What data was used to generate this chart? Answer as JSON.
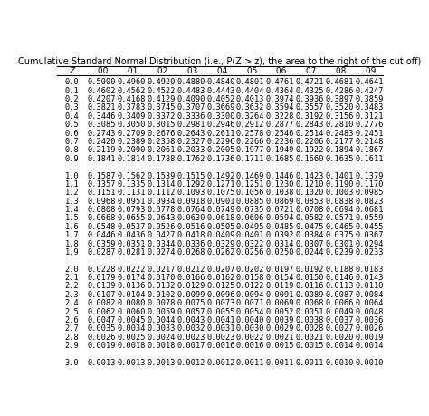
{
  "title": "Cumulative Standard Normal Distribution (i.e., P(Z > z), the area to the right of the cut off)",
  "col_headers": [
    "Z",
    ".00",
    ".01",
    ".02",
    ".03",
    ".04",
    ".05",
    ".06",
    ".07",
    ".08",
    ".09"
  ],
  "rows": [
    [
      "0.0",
      "0.5000",
      "0.4960",
      "0.4920",
      "0.4880",
      "0.4840",
      "0.4801",
      "0.4761",
      "0.4721",
      "0.4681",
      "0.4641"
    ],
    [
      "0.1",
      "0.4602",
      "0.4562",
      "0.4522",
      "0.4483",
      "0.4443",
      "0.4404",
      "0.4364",
      "0.4325",
      "0.4286",
      "0.4247"
    ],
    [
      "0.2",
      "0.4207",
      "0.4168",
      "0.4129",
      "0.4090",
      "0.4052",
      "0.4013",
      "0.3974",
      "0.3936",
      "0.3897",
      "0.3859"
    ],
    [
      "0.3",
      "0.3821",
      "0.3783",
      "0.3745",
      "0.3707",
      "0.3669",
      "0.3632",
      "0.3594",
      "0.3557",
      "0.3520",
      "0.3483"
    ],
    [
      "0.4",
      "0.3446",
      "0.3409",
      "0.3372",
      "0.3336",
      "0.3300",
      "0.3264",
      "0.3228",
      "0.3192",
      "0.3156",
      "0.3121"
    ],
    [
      "0.5",
      "0.3085",
      "0.3050",
      "0.3015",
      "0.2981",
      "0.2946",
      "0.2912",
      "0.2877",
      "0.2843",
      "0.2810",
      "0.2776"
    ],
    [
      "0.6",
      "0.2743",
      "0.2709",
      "0.2676",
      "0.2643",
      "0.2611",
      "0.2578",
      "0.2546",
      "0.2514",
      "0.2483",
      "0.2451"
    ],
    [
      "0.7",
      "0.2420",
      "0.2389",
      "0.2358",
      "0.2327",
      "0.2296",
      "0.2266",
      "0.2236",
      "0.2206",
      "0.2177",
      "0.2148"
    ],
    [
      "0.8",
      "0.2119",
      "0.2090",
      "0.2061",
      "0.2033",
      "0.2005",
      "0.1977",
      "0.1949",
      "0.1922",
      "0.1894",
      "0.1867"
    ],
    [
      "0.9",
      "0.1841",
      "0.1814",
      "0.1788",
      "0.1762",
      "0.1736",
      "0.1711",
      "0.1685",
      "0.1660",
      "0.1635",
      "0.1611"
    ],
    [
      "1.0",
      "0.1587",
      "0.1562",
      "0.1539",
      "0.1515",
      "0.1492",
      "0.1469",
      "0.1446",
      "0.1423",
      "0.1401",
      "0.1379"
    ],
    [
      "1.1",
      "0.1357",
      "0.1335",
      "0.1314",
      "0.1292",
      "0.1271",
      "0.1251",
      "0.1230",
      "0.1210",
      "0.1190",
      "0.1170"
    ],
    [
      "1.2",
      "0.1151",
      "0.1131",
      "0.1112",
      "0.1093",
      "0.1075",
      "0.1056",
      "0.1038",
      "0.1020",
      "0.1003",
      "0.0985"
    ],
    [
      "1.3",
      "0.0968",
      "0.0951",
      "0.0934",
      "0.0918",
      "0.0901",
      "0.0885",
      "0.0869",
      "0.0853",
      "0.0838",
      "0.0823"
    ],
    [
      "1.4",
      "0.0808",
      "0.0793",
      "0.0778",
      "0.0764",
      "0.0749",
      "0.0735",
      "0.0721",
      "0.0708",
      "0.0694",
      "0.0681"
    ],
    [
      "1.5",
      "0.0668",
      "0.0655",
      "0.0643",
      "0.0630",
      "0.0618",
      "0.0606",
      "0.0594",
      "0.0582",
      "0.0571",
      "0.0559"
    ],
    [
      "1.6",
      "0.0548",
      "0.0537",
      "0.0526",
      "0.0516",
      "0.0505",
      "0.0495",
      "0.0485",
      "0.0475",
      "0.0465",
      "0.0455"
    ],
    [
      "1.7",
      "0.0446",
      "0.0436",
      "0.0427",
      "0.0418",
      "0.0409",
      "0.0401",
      "0.0392",
      "0.0384",
      "0.0375",
      "0.0367"
    ],
    [
      "1.8",
      "0.0359",
      "0.0351",
      "0.0344",
      "0.0336",
      "0.0329",
      "0.0322",
      "0.0314",
      "0.0307",
      "0.0301",
      "0.0294"
    ],
    [
      "1.9",
      "0.0287",
      "0.0281",
      "0.0274",
      "0.0268",
      "0.0262",
      "0.0256",
      "0.0250",
      "0.0244",
      "0.0239",
      "0.0233"
    ],
    [
      "2.0",
      "0.0228",
      "0.0222",
      "0.0217",
      "0.0212",
      "0.0207",
      "0.0202",
      "0.0197",
      "0.0192",
      "0.0188",
      "0.0183"
    ],
    [
      "2.1",
      "0.0179",
      "0.0174",
      "0.0170",
      "0.0166",
      "0.0162",
      "0.0158",
      "0.0154",
      "0.0150",
      "0.0146",
      "0.0143"
    ],
    [
      "2.2",
      "0.0139",
      "0.0136",
      "0.0132",
      "0.0129",
      "0.0125",
      "0.0122",
      "0.0119",
      "0.0116",
      "0.0113",
      "0.0110"
    ],
    [
      "2.3",
      "0.0107",
      "0.0104",
      "0.0102",
      "0.0099",
      "0.0096",
      "0.0094",
      "0.0091",
      "0.0089",
      "0.0087",
      "0.0084"
    ],
    [
      "2.4",
      "0.0082",
      "0.0080",
      "0.0078",
      "0.0075",
      "0.0073",
      "0.0071",
      "0.0069",
      "0.0068",
      "0.0066",
      "0.0064"
    ],
    [
      "2.5",
      "0.0062",
      "0.0060",
      "0.0059",
      "0.0057",
      "0.0055",
      "0.0054",
      "0.0052",
      "0.0051",
      "0.0049",
      "0.0048"
    ],
    [
      "2.6",
      "0.0047",
      "0.0045",
      "0.0044",
      "0.0043",
      "0.0041",
      "0.0040",
      "0.0039",
      "0.0038",
      "0.0037",
      "0.0036"
    ],
    [
      "2.7",
      "0.0035",
      "0.0034",
      "0.0033",
      "0.0032",
      "0.0031",
      "0.0030",
      "0.0029",
      "0.0028",
      "0.0027",
      "0.0026"
    ],
    [
      "2.8",
      "0.0026",
      "0.0025",
      "0.0024",
      "0.0023",
      "0.0023",
      "0.0022",
      "0.0021",
      "0.0021",
      "0.0020",
      "0.0019"
    ],
    [
      "2.9",
      "0.0019",
      "0.0018",
      "0.0018",
      "0.0017",
      "0.0016",
      "0.0016",
      "0.0015",
      "0.0015",
      "0.0014",
      "0.0014"
    ],
    [
      "3.0",
      "0.0013",
      "0.0013",
      "0.0013",
      "0.0012",
      "0.0012",
      "0.0011",
      "0.0011",
      "0.0011",
      "0.0010",
      "0.0010"
    ]
  ],
  "bg_color": "#ffffff",
  "text_color": "#000000",
  "header_line_color": "#000000",
  "font_size": 6.2,
  "title_font_size": 7.0
}
